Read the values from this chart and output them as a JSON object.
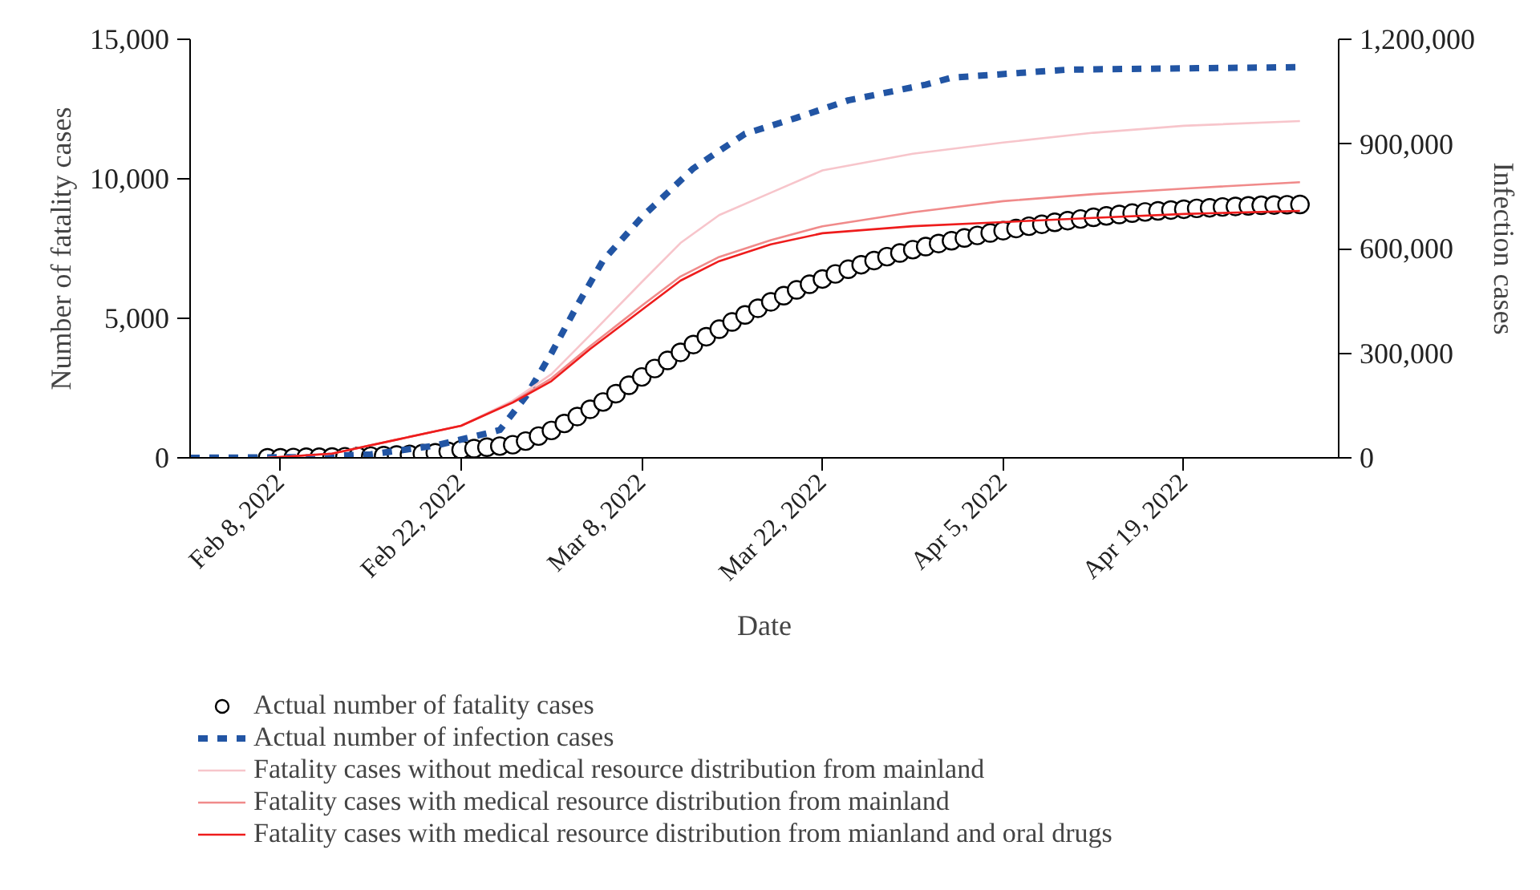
{
  "chart_data": {
    "type": "line",
    "xlabel": "Date",
    "ylabel": "Number of fatality cases",
    "y2label": "Infection cases",
    "xlim": [
      "2022-02-01",
      "2022-05-01"
    ],
    "xticks": [
      {
        "value": "2022-02-08",
        "label": "Feb 8, 2022"
      },
      {
        "value": "2022-02-22",
        "label": "Feb 22, 2022"
      },
      {
        "value": "2022-03-08",
        "label": "Mar 8, 2022"
      },
      {
        "value": "2022-03-22",
        "label": "Mar 22, 2022"
      },
      {
        "value": "2022-04-05",
        "label": "Apr 5, 2022"
      },
      {
        "value": "2022-04-19",
        "label": "Apr 19, 2022"
      }
    ],
    "ylim": [
      0,
      15000
    ],
    "yticks": [
      {
        "value": 0,
        "label": "0"
      },
      {
        "value": 5000,
        "label": "5,000"
      },
      {
        "value": 10000,
        "label": "10,000"
      },
      {
        "value": 15000,
        "label": "15,000"
      }
    ],
    "y2lim": [
      0,
      1200000
    ],
    "y2ticks": [
      {
        "value": 0,
        "label": "0"
      },
      {
        "value": 300000,
        "label": "300,000"
      },
      {
        "value": 600000,
        "label": "600,000"
      },
      {
        "value": 900000,
        "label": "900,000"
      },
      {
        "value": 1200000,
        "label": "1,200,000"
      }
    ],
    "grid": false,
    "legend": "bottom",
    "series": [
      {
        "name": "Actual number of fatality cases",
        "type": "scatter",
        "marker": "circle",
        "color": "#000000",
        "x": [
          "2022-02-07",
          "2022-02-08",
          "2022-02-09",
          "2022-02-10",
          "2022-02-11",
          "2022-02-12",
          "2022-02-13",
          "2022-02-14",
          "2022-02-15",
          "2022-02-16",
          "2022-02-17",
          "2022-02-18",
          "2022-02-19",
          "2022-02-20",
          "2022-02-21",
          "2022-02-22",
          "2022-02-23",
          "2022-02-24",
          "2022-02-25",
          "2022-02-26",
          "2022-02-27",
          "2022-02-28",
          "2022-03-01",
          "2022-03-02",
          "2022-03-03",
          "2022-03-04",
          "2022-03-05",
          "2022-03-06",
          "2022-03-07",
          "2022-03-08",
          "2022-03-09",
          "2022-03-10",
          "2022-03-11",
          "2022-03-12",
          "2022-03-13",
          "2022-03-14",
          "2022-03-15",
          "2022-03-16",
          "2022-03-17",
          "2022-03-18",
          "2022-03-19",
          "2022-03-20",
          "2022-03-21",
          "2022-03-22",
          "2022-03-23",
          "2022-03-24",
          "2022-03-25",
          "2022-03-26",
          "2022-03-27",
          "2022-03-28",
          "2022-03-29",
          "2022-03-30",
          "2022-03-31",
          "2022-04-01",
          "2022-04-02",
          "2022-04-03",
          "2022-04-04",
          "2022-04-05",
          "2022-04-06",
          "2022-04-07",
          "2022-04-08",
          "2022-04-09",
          "2022-04-10",
          "2022-04-11",
          "2022-04-12",
          "2022-04-13",
          "2022-04-14",
          "2022-04-15",
          "2022-04-16",
          "2022-04-17",
          "2022-04-18",
          "2022-04-19",
          "2022-04-20",
          "2022-04-21",
          "2022-04-22",
          "2022-04-23",
          "2022-04-24",
          "2022-04-25",
          "2022-04-26",
          "2022-04-27",
          "2022-04-28"
        ],
        "values": [
          0,
          0,
          10,
          20,
          20,
          30,
          40,
          50,
          60,
          80,
          100,
          120,
          150,
          180,
          230,
          290,
          330,
          380,
          420,
          470,
          600,
          780,
          980,
          1230,
          1480,
          1740,
          2000,
          2300,
          2600,
          2900,
          3200,
          3490,
          3780,
          4060,
          4340,
          4610,
          4870,
          5120,
          5360,
          5590,
          5810,
          6020,
          6220,
          6410,
          6590,
          6760,
          6920,
          7070,
          7210,
          7340,
          7460,
          7570,
          7680,
          7780,
          7880,
          7970,
          8060,
          8140,
          8220,
          8300,
          8370,
          8440,
          8500,
          8560,
          8620,
          8670,
          8720,
          8770,
          8810,
          8850,
          8880,
          8910,
          8940,
          8960,
          8990,
          9010,
          9030,
          9050,
          9060,
          9070,
          9080
        ]
      },
      {
        "name": "Actual number of infection cases",
        "line_style": "dashed",
        "axis": "y2",
        "color": "#2255a4",
        "x": [
          "2022-02-01",
          "2022-02-10",
          "2022-02-15",
          "2022-02-20",
          "2022-02-24",
          "2022-02-25",
          "2022-02-27",
          "2022-03-01",
          "2022-03-03",
          "2022-03-05",
          "2022-03-08",
          "2022-03-10",
          "2022-03-12",
          "2022-03-14",
          "2022-03-16",
          "2022-03-20",
          "2022-03-24",
          "2022-03-30",
          "2022-04-01",
          "2022-04-10",
          "2022-04-20",
          "2022-04-28"
        ],
        "values": [
          0,
          2000,
          10000,
          35000,
          70000,
          80000,
          175000,
          300000,
          437000,
          566000,
          690000,
          760000,
          830000,
          880000,
          929000,
          975000,
          1025000,
          1070000,
          1090000,
          1113000,
          1117000,
          1120000
        ]
      },
      {
        "name": "Fatality cases without medical resource distribution from mainland",
        "line_style": "solid",
        "color": "#f7c5cb",
        "x": [
          "2022-02-07",
          "2022-02-12",
          "2022-02-17",
          "2022-02-22",
          "2022-02-26",
          "2022-03-01",
          "2022-03-04",
          "2022-03-08",
          "2022-03-11",
          "2022-03-14",
          "2022-03-18",
          "2022-03-22",
          "2022-03-29",
          "2022-04-05",
          "2022-04-12",
          "2022-04-19",
          "2022-04-28"
        ],
        "values": [
          0,
          150,
          650,
          1150,
          2050,
          3000,
          4400,
          6300,
          7700,
          8700,
          9500,
          10300,
          10900,
          11300,
          11650,
          11900,
          12070
        ]
      },
      {
        "name": "Fatality cases with medical resource distribution from mainland",
        "line_style": "solid",
        "color": "#f08a8a",
        "x": [
          "2022-02-07",
          "2022-02-12",
          "2022-02-17",
          "2022-02-22",
          "2022-02-26",
          "2022-03-01",
          "2022-03-04",
          "2022-03-08",
          "2022-03-11",
          "2022-03-14",
          "2022-03-18",
          "2022-03-22",
          "2022-03-29",
          "2022-04-05",
          "2022-04-12",
          "2022-04-19",
          "2022-04-28"
        ],
        "values": [
          0,
          150,
          650,
          1150,
          2000,
          2850,
          4000,
          5450,
          6500,
          7200,
          7800,
          8300,
          8800,
          9200,
          9450,
          9650,
          9880
        ]
      },
      {
        "name": "Fatality cases with medical resource distribution from mianland and oral drugs",
        "line_style": "solid",
        "color": "#ee1c1c",
        "x": [
          "2022-02-07",
          "2022-02-12",
          "2022-02-17",
          "2022-02-22",
          "2022-02-26",
          "2022-03-01",
          "2022-03-04",
          "2022-03-08",
          "2022-03-11",
          "2022-03-14",
          "2022-03-18",
          "2022-03-22",
          "2022-03-29",
          "2022-04-05",
          "2022-04-12",
          "2022-04-19",
          "2022-04-28"
        ],
        "values": [
          0,
          150,
          650,
          1150,
          1980,
          2750,
          3900,
          5300,
          6350,
          7050,
          7650,
          8050,
          8300,
          8450,
          8600,
          8740,
          8850
        ]
      }
    ]
  }
}
